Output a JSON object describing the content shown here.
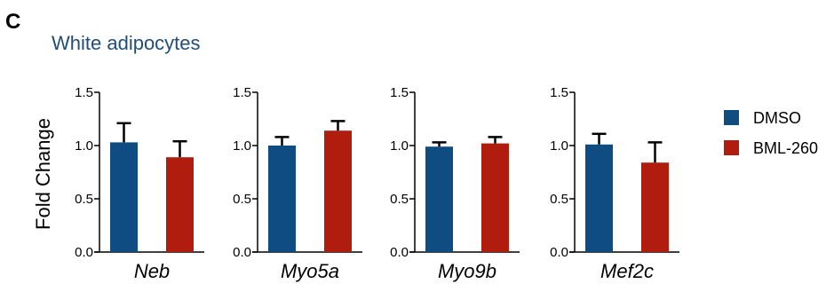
{
  "figure": {
    "panel_letter": "C",
    "title": "White adipocytes",
    "title_color": "#1f4e79"
  },
  "colors": {
    "DMSO": "#0f4c81",
    "BML-260": "#b01c0e"
  },
  "legend": {
    "placement": "right",
    "items": [
      {
        "label": "DMSO",
        "color": "#0f4c81"
      },
      {
        "label": "BML-260",
        "color": "#b01c0e"
      }
    ]
  },
  "chart_data": [
    {
      "type": "bar",
      "ylabel": "Fold Change",
      "ylim": [
        0,
        1.5
      ],
      "yticks": [
        "0.0",
        "0.5",
        "1.0",
        "1.5"
      ],
      "categories": [
        "Neb"
      ],
      "series": [
        {
          "name": "DMSO",
          "values": [
            1.03
          ],
          "errors": [
            0.18
          ]
        },
        {
          "name": "BML-260",
          "values": [
            0.89
          ],
          "errors": [
            0.15
          ]
        }
      ]
    },
    {
      "type": "bar",
      "ylabel": "",
      "ylim": [
        0,
        1.5
      ],
      "yticks": [
        "0.0",
        "0.5",
        "1.0",
        "1.5"
      ],
      "categories": [
        "Myo5a"
      ],
      "series": [
        {
          "name": "DMSO",
          "values": [
            1.0
          ],
          "errors": [
            0.08
          ]
        },
        {
          "name": "BML-260",
          "values": [
            1.14
          ],
          "errors": [
            0.09
          ]
        }
      ]
    },
    {
      "type": "bar",
      "ylabel": "",
      "ylim": [
        0,
        1.5
      ],
      "yticks": [
        "0.0",
        "0.5",
        "1.0",
        "1.5"
      ],
      "categories": [
        "Myo9b"
      ],
      "series": [
        {
          "name": "DMSO",
          "values": [
            0.99
          ],
          "errors": [
            0.04
          ]
        },
        {
          "name": "BML-260",
          "values": [
            1.02
          ],
          "errors": [
            0.06
          ]
        }
      ]
    },
    {
      "type": "bar",
      "ylabel": "",
      "ylim": [
        0,
        1.5
      ],
      "yticks": [
        "0.0",
        "0.5",
        "1.0",
        "1.5"
      ],
      "categories": [
        "Mef2c"
      ],
      "series": [
        {
          "name": "DMSO",
          "values": [
            1.01
          ],
          "errors": [
            0.1
          ]
        },
        {
          "name": "BML-260",
          "values": [
            0.84
          ],
          "errors": [
            0.19
          ]
        }
      ]
    }
  ]
}
